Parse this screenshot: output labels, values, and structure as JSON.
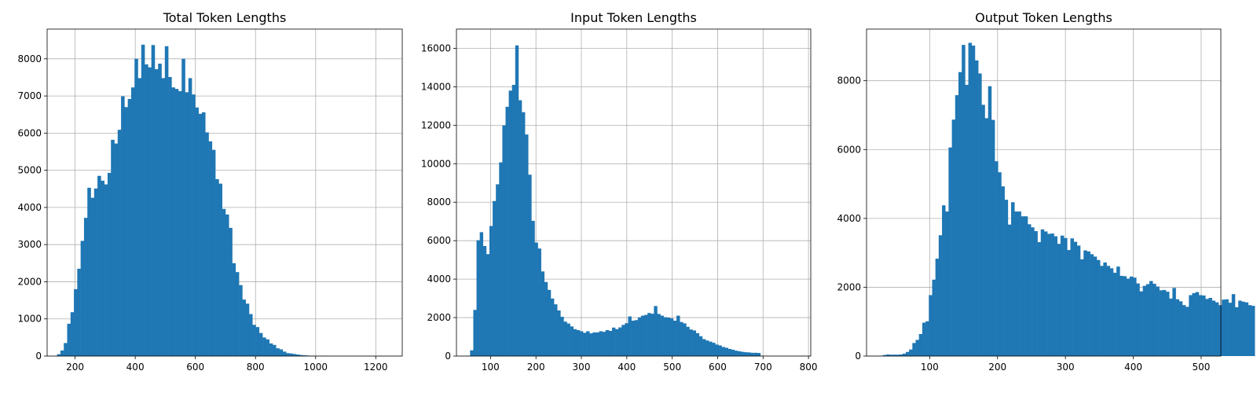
{
  "chart_data": [
    {
      "type": "histogram",
      "title": "Total Token Lengths",
      "xlim": [
        107,
        1288
      ],
      "ylim": [
        0,
        8800
      ],
      "xticks": [
        200,
        400,
        600,
        800,
        1000,
        1200
      ],
      "yticks": [
        0,
        1000,
        2000,
        3000,
        4000,
        5000,
        6000,
        7000,
        8000
      ],
      "grid": true,
      "color": "#1f77b4",
      "bin_start": 140,
      "bin_width": 11.2,
      "counts": [
        50,
        150,
        350,
        870,
        1180,
        1800,
        2350,
        3100,
        3720,
        4530,
        4260,
        4510,
        4850,
        4720,
        4620,
        4930,
        5820,
        5720,
        6090,
        6990,
        6700,
        6920,
        7230,
        8000,
        7480,
        8380,
        7850,
        7770,
        8370,
        7720,
        7870,
        7480,
        8340,
        7510,
        7230,
        7190,
        7130,
        8000,
        7100,
        7480,
        7040,
        6690,
        6520,
        6560,
        6020,
        5780,
        5550,
        4760,
        4640,
        3960,
        3810,
        3450,
        2500,
        2260,
        1910,
        1520,
        1410,
        1130,
        840,
        780,
        620,
        500,
        450,
        340,
        300,
        210,
        180,
        120,
        80,
        70,
        55,
        40,
        28,
        20,
        14,
        10,
        7,
        5,
        4,
        3,
        2,
        1,
        1,
        1,
        1,
        0,
        0,
        0,
        0,
        0,
        0,
        0,
        0,
        0,
        0,
        0,
        0,
        0,
        0,
        0
      ]
    },
    {
      "type": "histogram",
      "title": "Input Token Lengths",
      "xlim": [
        25,
        805
      ],
      "ylim": [
        0,
        17000
      ],
      "xticks": [
        100,
        200,
        300,
        400,
        500,
        600,
        700,
        800
      ],
      "yticks": [
        0,
        2000,
        4000,
        6000,
        8000,
        10000,
        12000,
        14000,
        16000
      ],
      "grid": true,
      "color": "#1f77b4",
      "bin_start": 55,
      "bin_width": 7.1,
      "counts": [
        300,
        2400,
        6020,
        6440,
        5720,
        5300,
        6760,
        8060,
        8930,
        10070,
        11990,
        12960,
        13800,
        14100,
        16150,
        13300,
        12680,
        11520,
        9430,
        7030,
        5900,
        5590,
        4400,
        3850,
        3440,
        2990,
        2690,
        2370,
        2040,
        1790,
        1690,
        1540,
        1400,
        1350,
        1290,
        1210,
        1290,
        1180,
        1230,
        1230,
        1290,
        1260,
        1350,
        1310,
        1480,
        1400,
        1490,
        1620,
        1710,
        2060,
        1840,
        1870,
        2010,
        2100,
        2140,
        2240,
        2200,
        2600,
        2190,
        2100,
        2020,
        2000,
        1960,
        1840,
        2100,
        1770,
        1700,
        1520,
        1380,
        1330,
        1190,
        1030,
        880,
        810,
        750,
        690,
        600,
        550,
        470,
        430,
        370,
        330,
        280,
        250,
        220,
        200,
        190,
        170,
        170,
        160,
        20
      ]
    },
    {
      "type": "histogram",
      "title": "Output Token Lengths",
      "xlim": [
        7,
        529
      ],
      "ylim": [
        0,
        9500
      ],
      "xticks": [
        100,
        200,
        300,
        400,
        500
      ],
      "yticks": [
        0,
        2000,
        4000,
        6000,
        8000
      ],
      "grid": true,
      "color": "#1f77b4",
      "bin_start": 26,
      "bin_width": 4.85,
      "counts": [
        10,
        30,
        45,
        40,
        40,
        40,
        45,
        70,
        120,
        190,
        380,
        470,
        640,
        970,
        1010,
        1770,
        2220,
        2830,
        3510,
        4380,
        4200,
        6060,
        6870,
        7580,
        8250,
        9040,
        7880,
        9100,
        9020,
        8590,
        8210,
        7300,
        6910,
        7840,
        6860,
        5660,
        5340,
        4930,
        4540,
        3820,
        4470,
        4200,
        4200,
        4060,
        4060,
        3830,
        3740,
        3630,
        3310,
        3680,
        3620,
        3550,
        3560,
        3480,
        3260,
        3500,
        3430,
        3080,
        3420,
        3320,
        3210,
        2810,
        3070,
        3040,
        2960,
        2890,
        2790,
        2620,
        2720,
        2620,
        2550,
        2420,
        2600,
        2330,
        2320,
        2250,
        2310,
        2280,
        2110,
        1880,
        2040,
        2090,
        2180,
        2100,
        2020,
        1910,
        1920,
        1870,
        1670,
        1980,
        1650,
        1590,
        1480,
        1430,
        1770,
        1830,
        1860,
        1770,
        1760,
        1660,
        1690,
        1610,
        1560,
        1480,
        1640,
        1650,
        1550,
        1800,
        1420,
        1610,
        1580,
        1560,
        1480,
        1460
      ]
    }
  ]
}
